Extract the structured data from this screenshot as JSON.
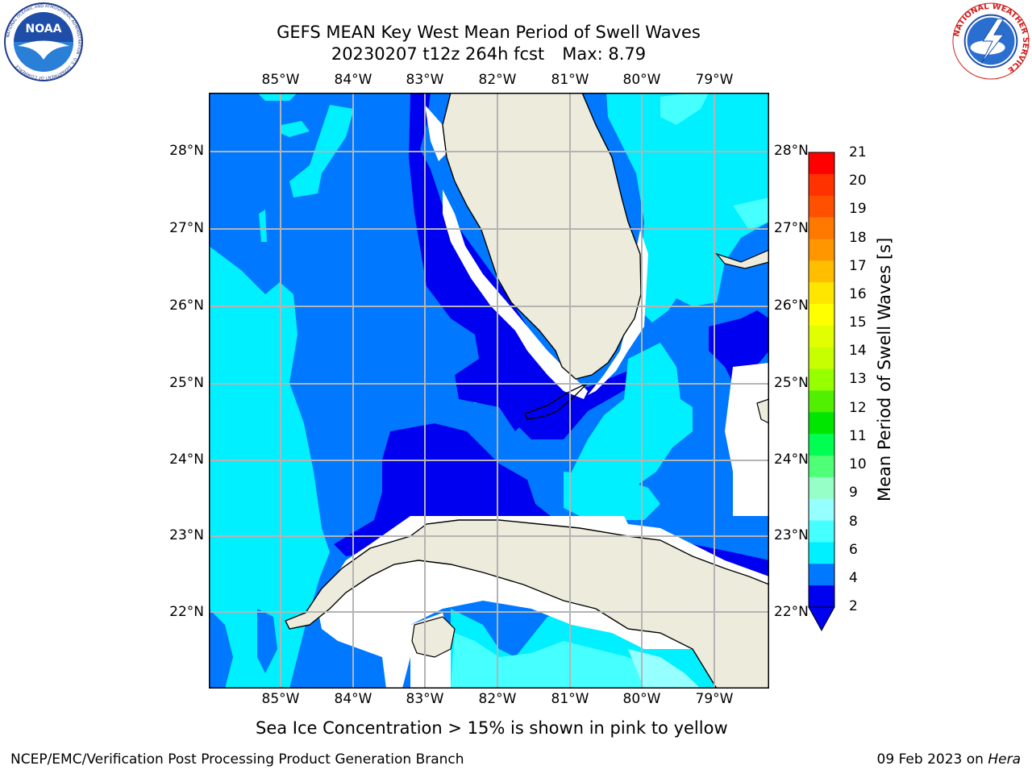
{
  "title": {
    "line1": "GEFS MEAN Key West Mean Period of Swell Waves",
    "line2": "20230207 t12z 264h fcst",
    "max_label": "Max: 8.79"
  },
  "logos": {
    "noaa": {
      "text": "NOAA",
      "ring_text": "NATIONAL OCEANIC AND ATMOSPHERIC ADMINISTRATION · U.S. DEPARTMENT OF COMMERCE"
    },
    "nws": {
      "ring_text": "NATIONAL WEATHER SERVICE"
    }
  },
  "map": {
    "lon_labels": [
      "85°W",
      "84°W",
      "83°W",
      "82°W",
      "81°W",
      "80°W",
      "79°W"
    ],
    "lat_labels": [
      "28°N",
      "27°N",
      "26°N",
      "25°N",
      "24°N",
      "23°N",
      "22°N"
    ],
    "colors": {
      "land": "#ecebdc",
      "ocean_dark": "#0000f0",
      "ocean_mid": "#0078ff",
      "ocean_light": "#00f0ff",
      "ocean_lighter": "#46ffff",
      "grid": "#b4b4b4"
    }
  },
  "colorbar": {
    "label": "Mean Period of Swell Waves [s]",
    "ticks": [
      "21",
      "20",
      "19",
      "18",
      "17",
      "16",
      "15",
      "14",
      "13",
      "12",
      "11",
      "10",
      "9",
      "8",
      "6",
      "4",
      "2"
    ],
    "colors": [
      "#ff0000",
      "#ff3200",
      "#ff5000",
      "#ff7800",
      "#ff9600",
      "#ffbe00",
      "#ffe600",
      "#ffff00",
      "#e1ff00",
      "#c8ff00",
      "#96ff00",
      "#50f000",
      "#00e600",
      "#00ff50",
      "#50ff78",
      "#96ffc8",
      "#96ffff",
      "#46ffff",
      "#00f0ff",
      "#0078ff",
      "#0000f0"
    ]
  },
  "note": "Sea Ice Concentration > 15% is shown in pink to yellow",
  "footer": {
    "left": "NCEP/EMC/Verification Post Processing Product Generation Branch",
    "right_prefix": "09 Feb 2023 on ",
    "right_italic": "Hera"
  }
}
